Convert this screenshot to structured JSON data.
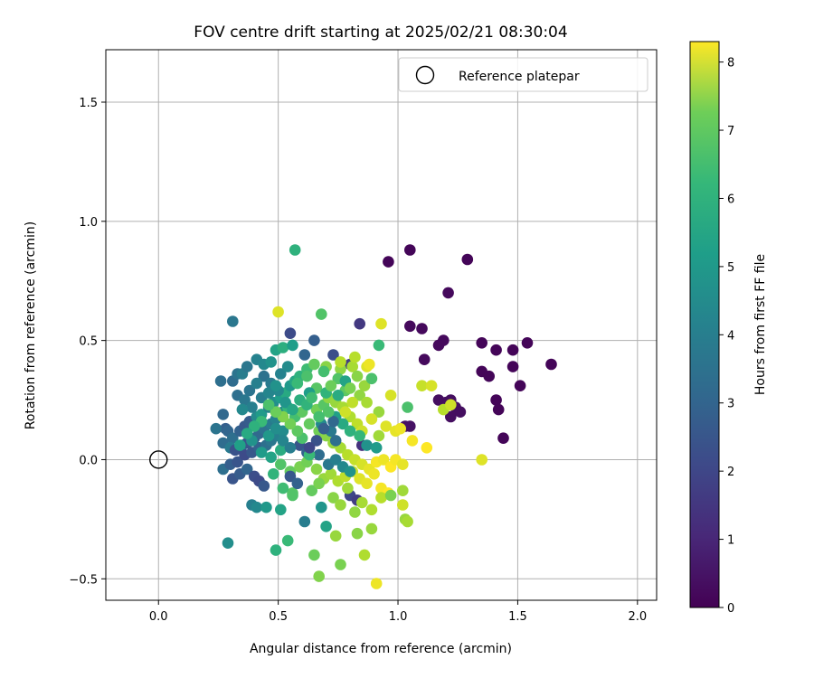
{
  "chart_data": {
    "type": "scatter",
    "title": "FOV centre drift starting at 2025/02/21 08:30:04",
    "xlabel": "Angular distance from reference (arcmin)",
    "ylabel": "Rotation from reference (arcmin)",
    "xlim": [
      -0.22,
      2.08
    ],
    "ylim": [
      -0.59,
      1.72
    ],
    "xticks": [
      0.0,
      0.5,
      1.0,
      1.5,
      2.0
    ],
    "xtick_labels": [
      "0.0",
      "0.5",
      "1.0",
      "1.5",
      "2.0"
    ],
    "yticks": [
      -0.5,
      0.0,
      0.5,
      1.0,
      1.5
    ],
    "ytick_labels": [
      "−0.5",
      "0.0",
      "0.5",
      "1.0",
      "1.5"
    ],
    "grid": true,
    "legend": {
      "position": "top-right",
      "entries": [
        "Reference platepar"
      ]
    },
    "reference_point": {
      "x": 0.0,
      "y": 0.0
    },
    "colorbar": {
      "label": "Hours from first FF file",
      "colormap": "viridis",
      "range": [
        0,
        8.3
      ],
      "ticks": [
        0,
        1,
        2,
        3,
        4,
        5,
        6,
        7,
        8
      ],
      "tick_labels": [
        "0",
        "1",
        "2",
        "3",
        "4",
        "5",
        "6",
        "7",
        "8"
      ]
    },
    "point_series_fields": [
      "x",
      "y",
      "hours"
    ],
    "points": [
      [
        0.96,
        0.83,
        0.1
      ],
      [
        1.05,
        0.88,
        0.1
      ],
      [
        1.29,
        0.84,
        0.1
      ],
      [
        1.21,
        0.7,
        0.2
      ],
      [
        1.05,
        0.56,
        0.2
      ],
      [
        1.1,
        0.55,
        0.2
      ],
      [
        1.19,
        0.5,
        0.2
      ],
      [
        1.17,
        0.48,
        0.2
      ],
      [
        1.35,
        0.49,
        0.1
      ],
      [
        1.41,
        0.46,
        0.1
      ],
      [
        1.48,
        0.46,
        0.1
      ],
      [
        1.54,
        0.49,
        0.1
      ],
      [
        1.64,
        0.4,
        0.1
      ],
      [
        1.48,
        0.39,
        0.1
      ],
      [
        1.35,
        0.37,
        0.1
      ],
      [
        1.38,
        0.35,
        0.1
      ],
      [
        1.51,
        0.31,
        0.1
      ],
      [
        1.41,
        0.25,
        0.1
      ],
      [
        1.42,
        0.21,
        0.1
      ],
      [
        1.44,
        0.09,
        0.1
      ],
      [
        1.11,
        0.42,
        0.2
      ],
      [
        1.17,
        0.25,
        0.3
      ],
      [
        1.2,
        0.24,
        0.3
      ],
      [
        1.22,
        0.25,
        0.3
      ],
      [
        1.24,
        0.22,
        0.3
      ],
      [
        1.26,
        0.2,
        0.3
      ],
      [
        1.22,
        0.18,
        0.3
      ],
      [
        1.03,
        0.14,
        0.4
      ],
      [
        1.05,
        0.14,
        0.4
      ],
      [
        0.84,
        0.57,
        1.4
      ],
      [
        0.55,
        0.53,
        1.9
      ],
      [
        0.65,
        0.5,
        2.5
      ],
      [
        0.31,
        0.58,
        3.3
      ],
      [
        0.73,
        0.44,
        2.0
      ],
      [
        0.8,
        0.4,
        1.5
      ],
      [
        0.85,
        0.06,
        1.2
      ],
      [
        0.8,
        -0.15,
        1.8
      ],
      [
        0.83,
        -0.17,
        1.5
      ],
      [
        0.26,
        0.33,
        3.0
      ],
      [
        0.27,
        0.19,
        2.8
      ],
      [
        0.31,
        0.33,
        2.9
      ],
      [
        0.33,
        0.36,
        3.2
      ],
      [
        0.35,
        0.36,
        3.5
      ],
      [
        0.37,
        0.39,
        3.3
      ],
      [
        0.41,
        0.42,
        3.7
      ],
      [
        0.44,
        0.4,
        3.9
      ],
      [
        0.47,
        0.41,
        4.2
      ],
      [
        0.49,
        0.46,
        4.8
      ],
      [
        0.52,
        0.47,
        5.2
      ],
      [
        0.56,
        0.48,
        4.6
      ],
      [
        0.28,
        0.13,
        2.5
      ],
      [
        0.24,
        0.13,
        3.2
      ],
      [
        0.29,
        0.12,
        2.7
      ],
      [
        0.31,
        0.09,
        3.0
      ],
      [
        0.34,
        0.12,
        2.6
      ],
      [
        0.36,
        0.14,
        2.3
      ],
      [
        0.38,
        0.16,
        2.4
      ],
      [
        0.41,
        0.18,
        4.0
      ],
      [
        0.43,
        0.19,
        4.5
      ],
      [
        0.46,
        0.22,
        3.8
      ],
      [
        0.48,
        0.24,
        4.1
      ],
      [
        0.51,
        0.26,
        4.6
      ],
      [
        0.53,
        0.28,
        5.0
      ],
      [
        0.55,
        0.31,
        4.4
      ],
      [
        0.57,
        0.33,
        4.9
      ],
      [
        0.59,
        0.35,
        5.3
      ],
      [
        0.27,
        0.07,
        2.9
      ],
      [
        0.3,
        0.05,
        3.4
      ],
      [
        0.32,
        0.04,
        2.1
      ],
      [
        0.35,
        0.06,
        3.7
      ],
      [
        0.37,
        0.07,
        2.2
      ],
      [
        0.4,
        0.09,
        2.5
      ],
      [
        0.42,
        0.11,
        2.8
      ],
      [
        0.44,
        0.13,
        3.1
      ],
      [
        0.47,
        0.15,
        3.4
      ],
      [
        0.49,
        0.17,
        3.7
      ],
      [
        0.52,
        0.2,
        4.0
      ],
      [
        0.54,
        0.22,
        5.5
      ],
      [
        0.27,
        -0.04,
        3.0
      ],
      [
        0.3,
        -0.02,
        2.5
      ],
      [
        0.33,
        -0.01,
        2.2
      ],
      [
        0.36,
        0.02,
        1.9
      ],
      [
        0.39,
        0.03,
        2.3
      ],
      [
        0.42,
        0.05,
        2.6
      ],
      [
        0.45,
        0.06,
        3.0
      ],
      [
        0.47,
        0.08,
        3.3
      ],
      [
        0.5,
        0.1,
        3.6
      ],
      [
        0.52,
        0.12,
        4.0
      ],
      [
        0.31,
        -0.08,
        2.2
      ],
      [
        0.34,
        -0.06,
        2.4
      ],
      [
        0.37,
        -0.04,
        2.7
      ],
      [
        0.4,
        -0.07,
        2.0
      ],
      [
        0.42,
        -0.09,
        1.9
      ],
      [
        0.44,
        -0.11,
        2.3
      ],
      [
        0.39,
        -0.19,
        3.6
      ],
      [
        0.41,
        -0.2,
        3.9
      ],
      [
        0.45,
        -0.2,
        4.4
      ],
      [
        0.51,
        -0.21,
        4.8
      ],
      [
        0.29,
        -0.35,
        4.1
      ],
      [
        0.49,
        -0.38,
        5.3
      ],
      [
        0.54,
        -0.34,
        5.6
      ],
      [
        0.61,
        -0.26,
        3.5
      ],
      [
        0.68,
        -0.2,
        4.3
      ],
      [
        0.7,
        -0.28,
        4.8
      ],
      [
        0.57,
        0.88,
        5.3
      ],
      [
        0.5,
        0.62,
        7.9
      ],
      [
        0.68,
        0.61,
        6.0
      ],
      [
        0.62,
        0.38,
        5.7
      ],
      [
        0.65,
        0.4,
        6.3
      ],
      [
        0.7,
        0.39,
        6.8
      ],
      [
        0.76,
        0.38,
        6.9
      ],
      [
        0.76,
        0.41,
        7.4
      ],
      [
        0.81,
        0.39,
        7.2
      ],
      [
        0.82,
        0.43,
        7.4
      ],
      [
        0.87,
        0.39,
        7.9
      ],
      [
        0.88,
        0.4,
        8.1
      ],
      [
        0.92,
        0.48,
        5.6
      ],
      [
        0.93,
        0.57,
        7.9
      ],
      [
        0.75,
        0.34,
        6.0
      ],
      [
        0.78,
        0.29,
        6.2
      ],
      [
        0.83,
        0.35,
        6.8
      ],
      [
        0.86,
        0.31,
        7.0
      ],
      [
        0.89,
        0.34,
        5.9
      ],
      [
        0.92,
        0.2,
        7.0
      ],
      [
        0.97,
        0.27,
        7.8
      ],
      [
        1.04,
        0.22,
        5.9
      ],
      [
        1.1,
        0.31,
        7.6
      ],
      [
        1.14,
        0.31,
        7.8
      ],
      [
        1.19,
        0.21,
        7.4
      ],
      [
        1.22,
        0.23,
        7.7
      ],
      [
        1.35,
        0.0,
        7.9
      ],
      [
        0.66,
        0.21,
        6.5
      ],
      [
        0.69,
        0.23,
        6.1
      ],
      [
        0.71,
        0.26,
        6.9
      ],
      [
        0.74,
        0.24,
        7.0
      ],
      [
        0.77,
        0.22,
        7.2
      ],
      [
        0.8,
        0.18,
        7.3
      ],
      [
        0.83,
        0.15,
        7.5
      ],
      [
        0.85,
        0.12,
        7.7
      ],
      [
        0.89,
        0.17,
        7.8
      ],
      [
        0.92,
        0.1,
        7.1
      ],
      [
        0.95,
        0.14,
        7.9
      ],
      [
        0.99,
        0.12,
        8.0
      ],
      [
        1.01,
        0.13,
        8.1
      ],
      [
        1.06,
        0.08,
        8.2
      ],
      [
        1.12,
        0.05,
        8.3
      ],
      [
        0.57,
        0.18,
        5.8
      ],
      [
        0.6,
        0.2,
        6.2
      ],
      [
        0.63,
        0.15,
        6.3
      ],
      [
        0.67,
        0.12,
        6.5
      ],
      [
        0.7,
        0.1,
        6.8
      ],
      [
        0.73,
        0.07,
        7.0
      ],
      [
        0.76,
        0.05,
        7.2
      ],
      [
        0.79,
        0.02,
        7.4
      ],
      [
        0.82,
        0.0,
        7.6
      ],
      [
        0.85,
        -0.02,
        7.8
      ],
      [
        0.88,
        -0.04,
        8.0
      ],
      [
        0.91,
        -0.01,
        8.2
      ],
      [
        0.94,
        0.0,
        8.1
      ],
      [
        0.97,
        -0.03,
        8.3
      ],
      [
        0.99,
        0.0,
        8.2
      ],
      [
        1.02,
        -0.02,
        8.0
      ],
      [
        0.51,
        -0.02,
        6.0
      ],
      [
        0.55,
        -0.05,
        6.3
      ],
      [
        0.59,
        -0.03,
        6.6
      ],
      [
        0.62,
        -0.01,
        6.5
      ],
      [
        0.66,
        -0.04,
        6.8
      ],
      [
        0.69,
        -0.08,
        7.0
      ],
      [
        0.72,
        -0.06,
        7.1
      ],
      [
        0.75,
        -0.09,
        7.3
      ],
      [
        0.78,
        -0.07,
        7.5
      ],
      [
        0.81,
        -0.05,
        7.7
      ],
      [
        0.84,
        -0.08,
        7.9
      ],
      [
        0.87,
        -0.1,
        8.0
      ],
      [
        0.9,
        -0.06,
        8.1
      ],
      [
        0.93,
        -0.12,
        8.2
      ],
      [
        0.96,
        -0.14,
        8.3
      ],
      [
        0.56,
        -0.14,
        6.1
      ],
      [
        0.64,
        -0.13,
        6.3
      ],
      [
        0.67,
        -0.1,
        6.6
      ],
      [
        0.73,
        -0.16,
        6.8
      ],
      [
        0.76,
        -0.19,
        7.0
      ],
      [
        0.79,
        -0.12,
        7.1
      ],
      [
        0.82,
        -0.22,
        6.9
      ],
      [
        0.85,
        -0.18,
        7.2
      ],
      [
        0.89,
        -0.21,
        7.3
      ],
      [
        0.93,
        -0.16,
        7.4
      ],
      [
        0.97,
        -0.15,
        6.6
      ],
      [
        1.02,
        -0.13,
        7.1
      ],
      [
        1.02,
        -0.19,
        7.7
      ],
      [
        1.03,
        -0.25,
        7.0
      ],
      [
        1.04,
        -0.26,
        7.2
      ],
      [
        0.65,
        -0.4,
        6.4
      ],
      [
        0.67,
        -0.49,
        6.7
      ],
      [
        0.74,
        -0.32,
        7.0
      ],
      [
        0.76,
        -0.44,
        6.6
      ],
      [
        0.83,
        -0.31,
        6.8
      ],
      [
        0.86,
        -0.4,
        7.3
      ],
      [
        0.89,
        -0.29,
        7.0
      ],
      [
        0.91,
        -0.52,
        8.1
      ],
      [
        0.58,
        0.32,
        5.6
      ],
      [
        0.62,
        0.35,
        5.9
      ],
      [
        0.66,
        0.3,
        6.1
      ],
      [
        0.7,
        0.28,
        5.4
      ],
      [
        0.74,
        0.18,
        4.7
      ],
      [
        0.77,
        0.15,
        5.0
      ],
      [
        0.8,
        0.12,
        5.3
      ],
      [
        0.84,
        0.1,
        5.5
      ],
      [
        0.87,
        0.06,
        4.2
      ],
      [
        0.91,
        0.05,
        4.5
      ],
      [
        0.63,
        0.28,
        4.6
      ],
      [
        0.68,
        0.15,
        3.9
      ],
      [
        0.72,
        0.12,
        3.4
      ],
      [
        0.74,
        0.08,
        3.0
      ],
      [
        0.59,
        0.06,
        2.2
      ],
      [
        0.62,
        0.03,
        2.6
      ],
      [
        0.67,
        0.02,
        2.9
      ],
      [
        0.71,
        -0.02,
        3.3
      ],
      [
        0.74,
        0.0,
        3.6
      ],
      [
        0.77,
        -0.03,
        3.9
      ],
      [
        0.8,
        -0.05,
        4.2
      ],
      [
        0.55,
        -0.07,
        2.3
      ],
      [
        0.58,
        -0.1,
        2.6
      ],
      [
        0.44,
        0.35,
        3.1
      ],
      [
        0.47,
        0.32,
        3.4
      ],
      [
        0.51,
        0.36,
        3.7
      ],
      [
        0.54,
        0.39,
        4.0
      ],
      [
        0.61,
        0.44,
        2.7
      ],
      [
        0.5,
        0.29,
        3.9
      ],
      [
        0.53,
        0.24,
        4.3
      ],
      [
        0.56,
        0.21,
        4.9
      ],
      [
        0.59,
        0.25,
        5.2
      ],
      [
        0.62,
        0.23,
        5.4
      ],
      [
        0.64,
        0.26,
        5.7
      ],
      [
        0.43,
        0.26,
        3.5
      ],
      [
        0.46,
        0.28,
        3.8
      ],
      [
        0.49,
        0.31,
        4.2
      ],
      [
        0.38,
        0.29,
        3.2
      ],
      [
        0.41,
        0.32,
        3.6
      ],
      [
        0.33,
        0.27,
        3.0
      ],
      [
        0.36,
        0.25,
        3.3
      ],
      [
        0.39,
        0.22,
        3.6
      ],
      [
        0.35,
        0.21,
        3.9
      ],
      [
        0.39,
        0.08,
        4.2
      ],
      [
        0.43,
        0.03,
        4.5
      ],
      [
        0.47,
        0.01,
        4.8
      ],
      [
        0.51,
        0.04,
        5.1
      ],
      [
        0.48,
        -0.06,
        5.4
      ],
      [
        0.52,
        -0.12,
        5.7
      ],
      [
        0.56,
        -0.15,
        6.0
      ],
      [
        0.63,
        0.02,
        5.6
      ],
      [
        0.6,
        0.09,
        5.9
      ],
      [
        0.58,
        0.12,
        6.2
      ],
      [
        0.55,
        0.15,
        6.5
      ],
      [
        0.52,
        0.18,
        6.7
      ],
      [
        0.49,
        0.2,
        6.4
      ],
      [
        0.46,
        0.23,
        5.9
      ],
      [
        0.43,
        0.16,
        5.6
      ],
      [
        0.4,
        0.14,
        5.3
      ],
      [
        0.37,
        0.11,
        5.0
      ],
      [
        0.34,
        0.06,
        4.7
      ],
      [
        0.46,
        0.1,
        4.4
      ],
      [
        0.49,
        0.13,
        4.1
      ],
      [
        0.52,
        0.08,
        3.8
      ],
      [
        0.55,
        0.05,
        3.5
      ],
      [
        0.69,
        0.37,
        5.8
      ],
      [
        0.72,
        0.31,
        6.4
      ],
      [
        0.75,
        0.27,
        5.1
      ],
      [
        0.78,
        0.33,
        4.8
      ],
      [
        0.73,
        0.16,
        2.8
      ],
      [
        0.69,
        0.13,
        2.5
      ],
      [
        0.66,
        0.08,
        2.1
      ],
      [
        0.63,
        0.05,
        1.8
      ],
      [
        0.8,
        0.3,
        6.6
      ],
      [
        0.84,
        0.27,
        6.9
      ],
      [
        0.87,
        0.24,
        7.2
      ],
      [
        0.81,
        0.24,
        7.5
      ],
      [
        0.78,
        0.2,
        7.7
      ],
      [
        0.71,
        0.2,
        6.0
      ],
      [
        0.67,
        0.18,
        5.8
      ]
    ]
  }
}
